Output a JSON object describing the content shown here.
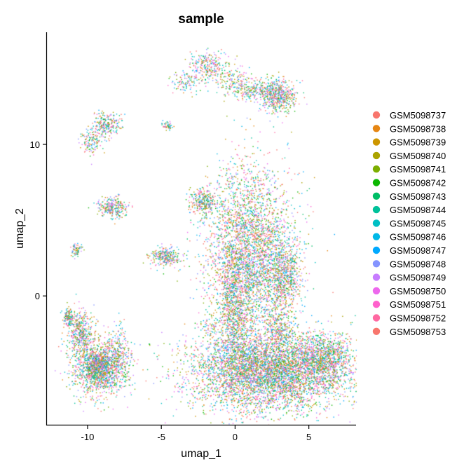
{
  "chart_data": {
    "type": "scatter",
    "title": "sample",
    "xlabel": "umap_1",
    "ylabel": "umap_2",
    "xlim": [
      -12.8,
      8.2
    ],
    "ylim": [
      -8.5,
      17.4
    ],
    "x_ticks": [
      -10,
      -5,
      0,
      5
    ],
    "y_ticks": [
      0,
      10
    ],
    "grid": false,
    "legend_position": "right",
    "series": [
      {
        "name": "GSM5098737",
        "color": "#F8766D"
      },
      {
        "name": "GSM5098738",
        "color": "#E68613"
      },
      {
        "name": "GSM5098739",
        "color": "#CD9600"
      },
      {
        "name": "GSM5098740",
        "color": "#ABA300"
      },
      {
        "name": "GSM5098741",
        "color": "#7CAE00"
      },
      {
        "name": "GSM5098742",
        "color": "#0CB702"
      },
      {
        "name": "GSM5098743",
        "color": "#00BE67"
      },
      {
        "name": "GSM5098744",
        "color": "#00C19A"
      },
      {
        "name": "GSM5098745",
        "color": "#00BFC4"
      },
      {
        "name": "GSM5098746",
        "color": "#00B8E7"
      },
      {
        "name": "GSM5098747",
        "color": "#00A9FF"
      },
      {
        "name": "GSM5098748",
        "color": "#8494FF"
      },
      {
        "name": "GSM5098749",
        "color": "#C77CFF"
      },
      {
        "name": "GSM5098750",
        "color": "#ED68ED"
      },
      {
        "name": "GSM5098751",
        "color": "#FF61CC"
      },
      {
        "name": "GSM5098752",
        "color": "#FF68A1"
      },
      {
        "name": "GSM5098753",
        "color": "#F8766D"
      }
    ],
    "clusters": [
      {
        "cx": 2.2,
        "cy": -5.0,
        "sx": 2.6,
        "sy": 1.3,
        "n": 5000
      },
      {
        "cx": 6.0,
        "cy": -4.2,
        "sx": 1.0,
        "sy": 0.8,
        "n": 900
      },
      {
        "cx": 1.0,
        "cy": 3.0,
        "sx": 1.5,
        "sy": 2.8,
        "n": 3400
      },
      {
        "cx": 0.0,
        "cy": -1.0,
        "sx": 0.6,
        "sy": 2.0,
        "n": 900
      },
      {
        "cx": 3.3,
        "cy": 1.3,
        "sx": 0.6,
        "sy": 1.1,
        "n": 650
      },
      {
        "cx": 3.0,
        "cy": -2.2,
        "sx": 0.5,
        "sy": 0.7,
        "n": 300
      },
      {
        "cx": -9.2,
        "cy": -4.8,
        "sx": 0.9,
        "sy": 0.9,
        "n": 1300
      },
      {
        "cx": -10.5,
        "cy": -2.4,
        "sx": 0.5,
        "sy": 0.8,
        "n": 450
      },
      {
        "cx": -7.9,
        "cy": -3.8,
        "sx": 0.4,
        "sy": 0.9,
        "n": 220
      },
      {
        "cx": -11.3,
        "cy": -1.4,
        "sx": 0.2,
        "sy": 0.3,
        "n": 110
      },
      {
        "cx": -9.3,
        "cy": -4.6,
        "sx": 0.45,
        "sy": 0.45,
        "n": 300
      },
      {
        "cx": 2.9,
        "cy": 13.2,
        "sx": 0.6,
        "sy": 0.55,
        "n": 520
      },
      {
        "cx": 1.2,
        "cy": 13.6,
        "sx": 0.9,
        "sy": 0.3,
        "n": 230
      },
      {
        "cx": -1.8,
        "cy": 15.2,
        "sx": 0.6,
        "sy": 0.5,
        "n": 230
      },
      {
        "cx": -3.2,
        "cy": 14.1,
        "sx": 0.5,
        "sy": 0.35,
        "n": 110
      },
      {
        "cx": -0.2,
        "cy": 14.4,
        "sx": 0.8,
        "sy": 0.5,
        "n": 140
      },
      {
        "cx": -8.7,
        "cy": 11.3,
        "sx": 0.5,
        "sy": 0.4,
        "n": 230
      },
      {
        "cx": -9.7,
        "cy": 10.2,
        "sx": 0.4,
        "sy": 0.5,
        "n": 140
      },
      {
        "cx": -4.6,
        "cy": 11.2,
        "sx": 0.2,
        "sy": 0.15,
        "n": 50
      },
      {
        "cx": -2.2,
        "cy": 6.2,
        "sx": 0.45,
        "sy": 0.45,
        "n": 280
      },
      {
        "cx": -8.3,
        "cy": 5.8,
        "sx": 0.5,
        "sy": 0.35,
        "n": 270
      },
      {
        "cx": -10.8,
        "cy": 3.0,
        "sx": 0.2,
        "sy": 0.2,
        "n": 70
      },
      {
        "cx": -4.7,
        "cy": 2.6,
        "sx": 0.5,
        "sy": 0.32,
        "n": 270
      },
      {
        "cx": -1.7,
        "cy": -2.0,
        "sx": 0.35,
        "sy": 0.2,
        "n": 40
      }
    ]
  }
}
